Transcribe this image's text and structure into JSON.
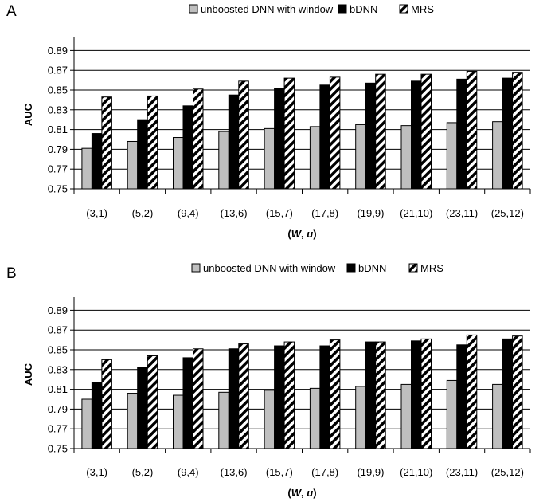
{
  "chart_data": [
    {
      "panel_label": "A",
      "type": "bar",
      "categories": [
        "(3,1)",
        "(5,2)",
        "(9,4)",
        "(13,6)",
        "(15,7)",
        "(17,8)",
        "(19,9)",
        "(21,10)",
        "(23,11)",
        "(25,12)"
      ],
      "series": [
        {
          "name": "unboosted DNN with window",
          "color": "#bfbfbf",
          "pattern": "solid",
          "values": [
            0.791,
            0.798,
            0.802,
            0.808,
            0.811,
            0.813,
            0.815,
            0.814,
            0.817,
            0.818
          ]
        },
        {
          "name": "bDNN",
          "color": "#000000",
          "pattern": "solid",
          "values": [
            0.806,
            0.82,
            0.834,
            0.845,
            0.852,
            0.855,
            0.857,
            0.859,
            0.861,
            0.862
          ]
        },
        {
          "name": "MRS",
          "color": "#000000",
          "pattern": "diagonal-stripes",
          "values": [
            0.843,
            0.844,
            0.851,
            0.859,
            0.862,
            0.863,
            0.866,
            0.866,
            0.869,
            0.868
          ]
        }
      ],
      "ylabel": "AUC",
      "xlabel_parts": [
        {
          "text": "(",
          "italic": false
        },
        {
          "text": "W",
          "italic": true
        },
        {
          "text": ", ",
          "italic": false
        },
        {
          "text": "u",
          "italic": true
        },
        {
          "text": ")",
          "italic": false
        }
      ],
      "ylim": [
        0.75,
        0.9
      ],
      "yticks": [
        "0.75",
        "0.77",
        "0.79",
        "0.81",
        "0.83",
        "0.85",
        "0.87",
        "0.89"
      ],
      "grid": true,
      "legend_position": "top"
    },
    {
      "panel_label": "B",
      "type": "bar",
      "categories": [
        "(3,1)",
        "(5,2)",
        "(9,4)",
        "(13,6)",
        "(15,7)",
        "(17,8)",
        "(19,9)",
        "(21,10)",
        "(23,11)",
        "(25,12)"
      ],
      "series": [
        {
          "name": "unboosted DNN with window",
          "color": "#bfbfbf",
          "pattern": "solid",
          "values": [
            0.8,
            0.806,
            0.804,
            0.807,
            0.809,
            0.811,
            0.813,
            0.815,
            0.819,
            0.815
          ]
        },
        {
          "name": "bDNN",
          "color": "#000000",
          "pattern": "solid",
          "values": [
            0.817,
            0.832,
            0.842,
            0.851,
            0.854,
            0.854,
            0.858,
            0.859,
            0.855,
            0.861
          ]
        },
        {
          "name": "MRS",
          "color": "#000000",
          "pattern": "diagonal-stripes",
          "values": [
            0.84,
            0.844,
            0.851,
            0.856,
            0.858,
            0.86,
            0.858,
            0.861,
            0.865,
            0.864
          ]
        }
      ],
      "ylabel": "AUC",
      "xlabel_parts": [
        {
          "text": "(",
          "italic": false
        },
        {
          "text": "W",
          "italic": true
        },
        {
          "text": ", ",
          "italic": false
        },
        {
          "text": "u",
          "italic": true
        },
        {
          "text": ")",
          "italic": false
        }
      ],
      "ylim": [
        0.75,
        0.9
      ],
      "yticks": [
        "0.75",
        "0.77",
        "0.79",
        "0.81",
        "0.83",
        "0.85",
        "0.87",
        "0.89"
      ],
      "grid": true,
      "legend_position": "top"
    }
  ]
}
